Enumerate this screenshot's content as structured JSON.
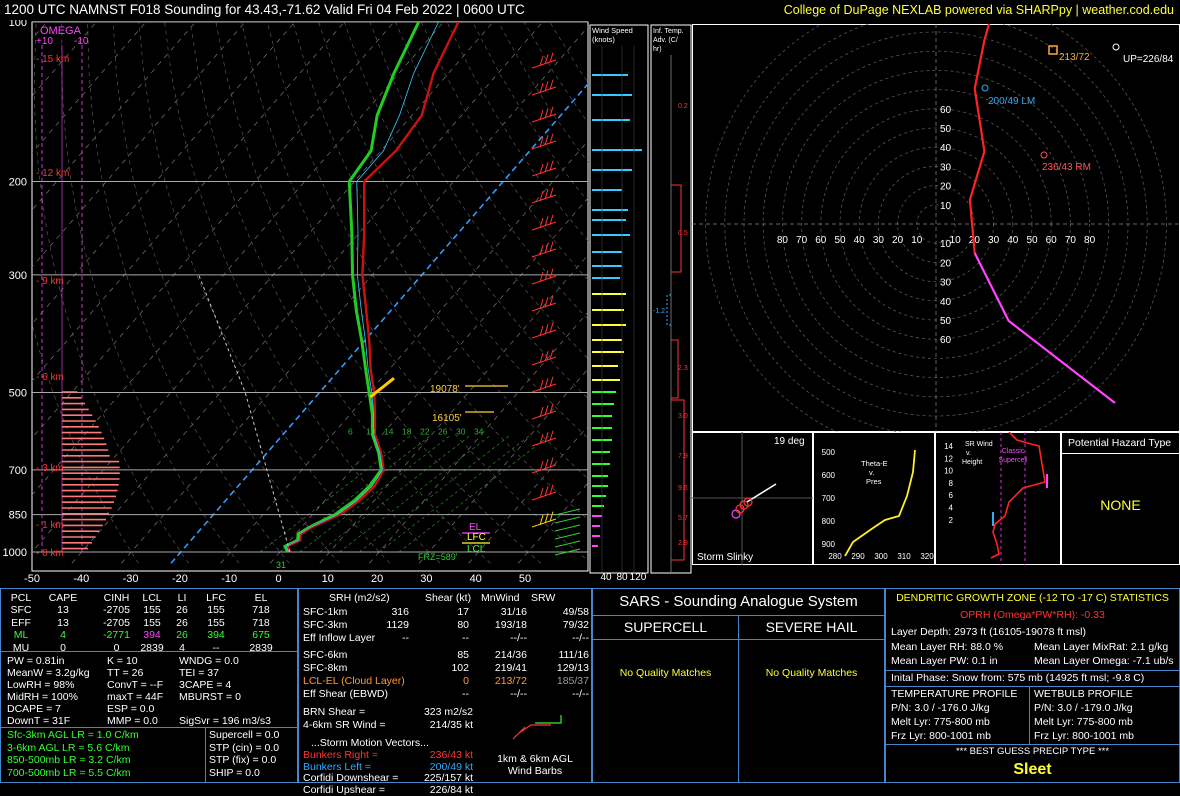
{
  "header": {
    "title": "1200 UTC NAMNST F018 Sounding for 43.43,-71.62 Valid  Fri 04 Feb 2022 | 0600 UTC",
    "credit": "College of DuPage NEXLAB powered via SHARPpy | weather.cod.edu"
  },
  "chart_data": [
    {
      "type": "line",
      "name": "skew-t",
      "pressure_ticks": [
        "100",
        "200",
        "300",
        "500",
        "700",
        "850",
        "1000"
      ],
      "temp_ticks": [
        "-50",
        "-40",
        "-30",
        "-20",
        "-10",
        "0",
        "10",
        "20",
        "30",
        "40",
        "50"
      ],
      "height_labels": [
        "15 km",
        "12 km",
        "9 km",
        "6 km",
        "3 km",
        "1 km",
        "0 km"
      ],
      "omega_label": "OMEGA",
      "omega_ticks": [
        "+10",
        "-10"
      ],
      "annotations": [
        "19078'",
        "16105'",
        "FRZ=589'",
        "31",
        "EL",
        "LFC",
        "LCL"
      ],
      "mixing_ratios": [
        "6",
        "10",
        "14",
        "18",
        "22",
        "26",
        "30",
        "34"
      ],
      "temperature": [
        [
          1000,
          2
        ],
        [
          975,
          0.5
        ],
        [
          950,
          2
        ],
        [
          925,
          1
        ],
        [
          900,
          2
        ],
        [
          850,
          5.5
        ],
        [
          800,
          7
        ],
        [
          750,
          7.5
        ],
        [
          700,
          6.5
        ],
        [
          650,
          3
        ],
        [
          600,
          -1.5
        ],
        [
          550,
          -5
        ],
        [
          500,
          -9
        ],
        [
          450,
          -14
        ],
        [
          400,
          -19
        ],
        [
          350,
          -25
        ],
        [
          300,
          -32
        ],
        [
          250,
          -39
        ],
        [
          200,
          -48
        ],
        [
          175,
          -47
        ],
        [
          150,
          -48
        ],
        [
          125,
          -53
        ],
        [
          100,
          -57
        ]
      ],
      "dewpoint": [
        [
          1000,
          1.5
        ],
        [
          975,
          0
        ],
        [
          950,
          1.5
        ],
        [
          925,
          0.5
        ],
        [
          900,
          1.5
        ],
        [
          850,
          4.5
        ],
        [
          800,
          6
        ],
        [
          750,
          6.5
        ],
        [
          700,
          6
        ],
        [
          650,
          2.5
        ],
        [
          600,
          -2
        ],
        [
          550,
          -5.5
        ],
        [
          500,
          -10
        ],
        [
          450,
          -15
        ],
        [
          400,
          -20.5
        ],
        [
          350,
          -27
        ],
        [
          300,
          -34
        ],
        [
          250,
          -41.5
        ],
        [
          200,
          -51
        ],
        [
          175,
          -52
        ],
        [
          150,
          -57
        ],
        [
          125,
          -61
        ],
        [
          100,
          -65
        ]
      ]
    },
    {
      "type": "bar",
      "name": "wind-speed",
      "title": "Wind Speed (knots)",
      "ticks": [
        "40",
        "80",
        "120"
      ]
    },
    {
      "type": "bar",
      "name": "inferred-temp-advection",
      "title": "Inf. Temp. Adv. (C/hr)",
      "labels": [
        "0.2",
        "0.5",
        "-1.2",
        "2.3",
        "3.0",
        "7.9",
        "9.6",
        "5.7",
        "2.9"
      ]
    },
    {
      "type": "line",
      "name": "hodograph",
      "ring_labels": [
        "10",
        "20",
        "30",
        "40",
        "50",
        "60",
        "70",
        "80"
      ],
      "labels": {
        "upshear": "UP=226/84",
        "storm": "213/72",
        "left_mover": "200/49 LM",
        "right_mover": "236/43 RM"
      },
      "trace": [
        [
          -37,
          37
        ],
        [
          -15,
          20
        ],
        [
          -8,
          6
        ],
        [
          -7,
          -5
        ],
        [
          -10,
          -15
        ],
        [
          -8,
          -28
        ],
        [
          -10,
          -38
        ],
        [
          -12,
          -45
        ],
        [
          -18,
          -50
        ],
        [
          -22,
          -55
        ],
        [
          -28,
          -60
        ],
        [
          -34,
          -64
        ],
        [
          -40,
          -66
        ],
        [
          -47,
          -68
        ],
        [
          -52,
          -68
        ],
        [
          -60,
          -66
        ],
        [
          -65,
          -62
        ],
        [
          -70,
          -55
        ]
      ]
    },
    {
      "type": "scatter",
      "name": "storm-slinky",
      "title": "Storm Slinky",
      "angle_label": "19 deg"
    },
    {
      "type": "line",
      "name": "theta-e",
      "title": "Theta-E v. Pres",
      "y_ticks": [
        "500",
        "600",
        "700",
        "800",
        "900",
        "1000"
      ],
      "x_ticks": [
        "280",
        "290",
        "300",
        "310",
        "320"
      ]
    },
    {
      "type": "line",
      "name": "sr-wind",
      "title": "SR Wind v. Height",
      "y_ticks": [
        "14",
        "12",
        "10",
        "8",
        "6",
        "4",
        "2"
      ],
      "supercell_label": "Classic Supercell"
    }
  ],
  "hazard": {
    "title": "Potential Hazard Type",
    "value": "NONE"
  },
  "parcels": {
    "headers": [
      "PCL",
      "CAPE",
      "CINH",
      "LCL",
      "LI",
      "LFC",
      "EL"
    ],
    "rows": [
      [
        "SFC",
        "13",
        "-2705",
        "155",
        "26",
        "155",
        "718"
      ],
      [
        "EFF",
        "13",
        "-2705",
        "155",
        "26",
        "155",
        "718"
      ],
      [
        "ML",
        "4",
        "-2771",
        "394",
        "26",
        "394",
        "675"
      ],
      [
        "MU",
        "0",
        "0",
        "2839",
        "4",
        "--",
        "2839"
      ]
    ]
  },
  "indices": [
    [
      "PW = 0.81in",
      "K = 10",
      "WNDG = 0.0"
    ],
    [
      "MeanW = 3.2g/kg",
      "TT = 26",
      "TEI = 37"
    ],
    [
      "LowRH = 98%",
      "ConvT = --F",
      "3CAPE = 4"
    ],
    [
      "MidRH = 100%",
      "maxT = 44F",
      "MBURST = 0"
    ],
    [
      "DCAPE = 7",
      "ESP = 0.0",
      ""
    ],
    [
      "DownT = 31F",
      "MMP = 0.0",
      "SigSvr = 196 m3/s3"
    ]
  ],
  "lapse_rates": [
    "Sfc-3km AGL LR = 1.0 C/km",
    "3-6km AGL LR = 5.6 C/km",
    "850-500mb LR = 3.2 C/km",
    "700-500mb LR = 5.5 C/km"
  ],
  "composite": [
    "Supercell = 0.0",
    "STP (cin) = 0.0",
    "STP (fix) = 0.0",
    "SHIP = 0.0"
  ],
  "kinematics": {
    "headers": [
      "SRH (m2/s2)",
      "Shear (kt)",
      "MnWind",
      "SRW"
    ],
    "rows": [
      [
        "SFC-1km",
        "316",
        "17",
        "31/16",
        "49/58"
      ],
      [
        "SFC-3km",
        "1129",
        "80",
        "193/18",
        "79/32"
      ],
      [
        "Eff Inflow Layer",
        "--",
        "--",
        "--/--",
        "--/--"
      ],
      [
        "SFC-6km",
        "85",
        "214/36",
        "111/16"
      ],
      [
        "SFC-8km",
        "102",
        "219/41",
        "129/13"
      ],
      [
        "LCL-EL (Cloud Layer)",
        "0",
        "213/72",
        "185/37"
      ],
      [
        "Eff Shear (EBWD)",
        "--",
        "--/--",
        "--/--"
      ]
    ],
    "brn": "BRN Shear =",
    "brn_val": "323 m2/s2",
    "sr46": "4-6km SR Wind =",
    "sr46_val": "214/35 kt",
    "motion_title": "...Storm Motion Vectors...",
    "motions": [
      [
        "Bunkers Right =",
        "236/43 kt"
      ],
      [
        "Bunkers Left =",
        "200/49 kt"
      ],
      [
        "Corfidi Downshear =",
        "225/157 kt"
      ],
      [
        "Corfidi Upshear =",
        "226/84 kt"
      ]
    ],
    "barb_caption": "1km & 6km AGL Wind Barbs"
  },
  "sars": {
    "title": "SARS - Sounding Analogue System",
    "col1": "SUPERCELL",
    "col2": "SEVERE HAIL",
    "msg1": "No Quality Matches",
    "msg2": "No Quality Matches"
  },
  "dgz": {
    "title": "DENDRITIC GROWTH ZONE (-12 TO -17 C) STATISTICS",
    "opr": "OPRH (Omega*PW*RH): -0.33",
    "depth": "Layer Depth: 2973 ft (16105-19078 ft msl)",
    "rh": "Mean Layer RH: 88.0 %",
    "mixrat": "Mean Layer MixRat: 2.1 g/kg",
    "pw": "Mean Layer PW: 0.1 in",
    "omega": "Mean Layer Omega: -7.1 ub/s",
    "phase": "Inital Phase: Snow from: 575 mb (14925 ft msl; -9.8 C)",
    "temp_title": "TEMPERATURE PROFILE",
    "temp": [
      "P/N: 3.0 / -176.0 J/kg",
      "Melt Lyr: 775-800 mb",
      "Frz Lyr: 800-1001 mb"
    ],
    "wb_title": "WETBULB PROFILE",
    "wb": [
      "P/N: 3.0 / -179.0 J/kg",
      "Melt Lyr: 775-800 mb",
      "Frz Lyr: 800-1001 mb"
    ],
    "precip_title": "*** BEST GUESS PRECIP TYPE ***",
    "precip": "Sleet"
  }
}
